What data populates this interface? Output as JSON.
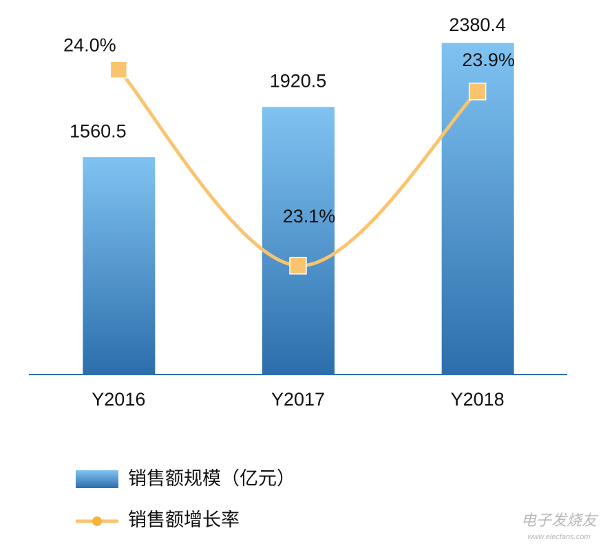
{
  "chart_data": {
    "type": "bar_line",
    "categories": [
      "Y2016",
      "Y2017",
      "Y2018"
    ],
    "series": [
      {
        "name": "销售额规模（亿元）",
        "type": "bar",
        "color": "#3b86c8",
        "values": [
          1560.5,
          1920.5,
          2380.4
        ]
      },
      {
        "name": "销售额增长率",
        "type": "line",
        "axis": "y2",
        "color": "#fac46e",
        "values": [
          24.0,
          23.1,
          23.9
        ],
        "value_labels": [
          "24.0%",
          "23.1%",
          "23.9%"
        ]
      }
    ],
    "ylim": [
      0,
      2500
    ],
    "y2lim": [
      22.6,
      24.2
    ],
    "grid": false,
    "watermark": {
      "title": "电子发烧友",
      "url": "www.elecfans.com"
    }
  }
}
